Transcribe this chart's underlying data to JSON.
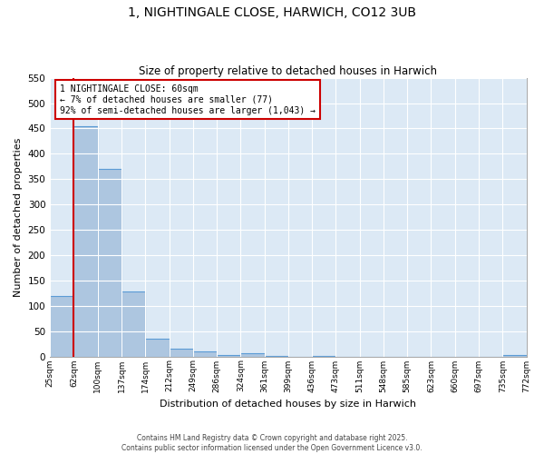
{
  "title": "1, NIGHTINGALE CLOSE, HARWICH, CO12 3UB",
  "subtitle": "Size of property relative to detached houses in Harwich",
  "xlabel": "Distribution of detached houses by size in Harwich",
  "ylabel": "Number of detached properties",
  "xlim_labels": [
    "25sqm",
    "62sqm",
    "100sqm",
    "137sqm",
    "174sqm",
    "212sqm",
    "249sqm",
    "286sqm",
    "324sqm",
    "361sqm",
    "399sqm",
    "436sqm",
    "473sqm",
    "511sqm",
    "548sqm",
    "585sqm",
    "623sqm",
    "660sqm",
    "697sqm",
    "735sqm",
    "772sqm"
  ],
  "bar_values": [
    120,
    455,
    370,
    128,
    35,
    15,
    10,
    2,
    6,
    1,
    0,
    1,
    0,
    0,
    0,
    0,
    0,
    0,
    0,
    2
  ],
  "bar_color": "#adc6e0",
  "bar_edge_color": "#5b9bd5",
  "ylim": [
    0,
    550
  ],
  "yticks": [
    0,
    50,
    100,
    150,
    200,
    250,
    300,
    350,
    400,
    450,
    500,
    550
  ],
  "grid_color": "#ffffff",
  "bg_color": "#dce9f5",
  "property_line_label": "1 NIGHTINGALE CLOSE: 60sqm",
  "annotation_line1": "← 7% of detached houses are smaller (77)",
  "annotation_line2": "92% of semi-detached houses are larger (1,043) →",
  "box_facecolor": "#ffffff",
  "box_edgecolor": "#cc0000",
  "footer1": "Contains HM Land Registry data © Crown copyright and database right 2025.",
  "footer2": "Contains public sector information licensed under the Open Government Licence v3.0."
}
